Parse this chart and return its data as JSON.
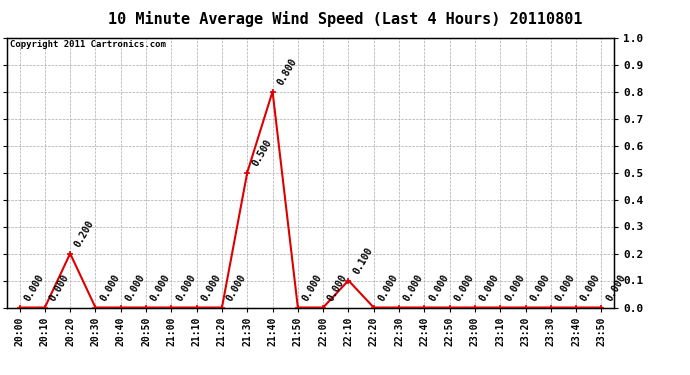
{
  "title": "10 Minute Average Wind Speed (Last 4 Hours) 20110801",
  "copyright": "Copyright 2011 Cartronics.com",
  "x_labels": [
    "20:00",
    "20:10",
    "20:20",
    "20:30",
    "20:40",
    "20:50",
    "21:00",
    "21:10",
    "21:20",
    "21:30",
    "21:40",
    "21:50",
    "22:00",
    "22:10",
    "22:20",
    "22:30",
    "22:40",
    "22:50",
    "23:00",
    "23:10",
    "23:20",
    "23:30",
    "23:40",
    "23:50"
  ],
  "y_values": [
    0.0,
    0.0,
    0.2,
    0.0,
    0.0,
    0.0,
    0.0,
    0.0,
    0.0,
    0.5,
    0.8,
    0.0,
    0.0,
    0.1,
    0.0,
    0.0,
    0.0,
    0.0,
    0.0,
    0.0,
    0.0,
    0.0,
    0.0,
    0.0
  ],
  "line_color": "#dd0000",
  "marker_color": "#dd0000",
  "background_color": "#ffffff",
  "grid_color": "#aaaaaa",
  "ylim": [
    0.0,
    1.0
  ],
  "yticks_right": [
    0.0,
    0.1,
    0.2,
    0.3,
    0.4,
    0.5,
    0.6,
    0.7,
    0.8,
    0.9,
    1.0
  ],
  "title_fontsize": 11,
  "annotation_fontsize": 7,
  "xlabel_fontsize": 7,
  "tick_fontsize": 8
}
